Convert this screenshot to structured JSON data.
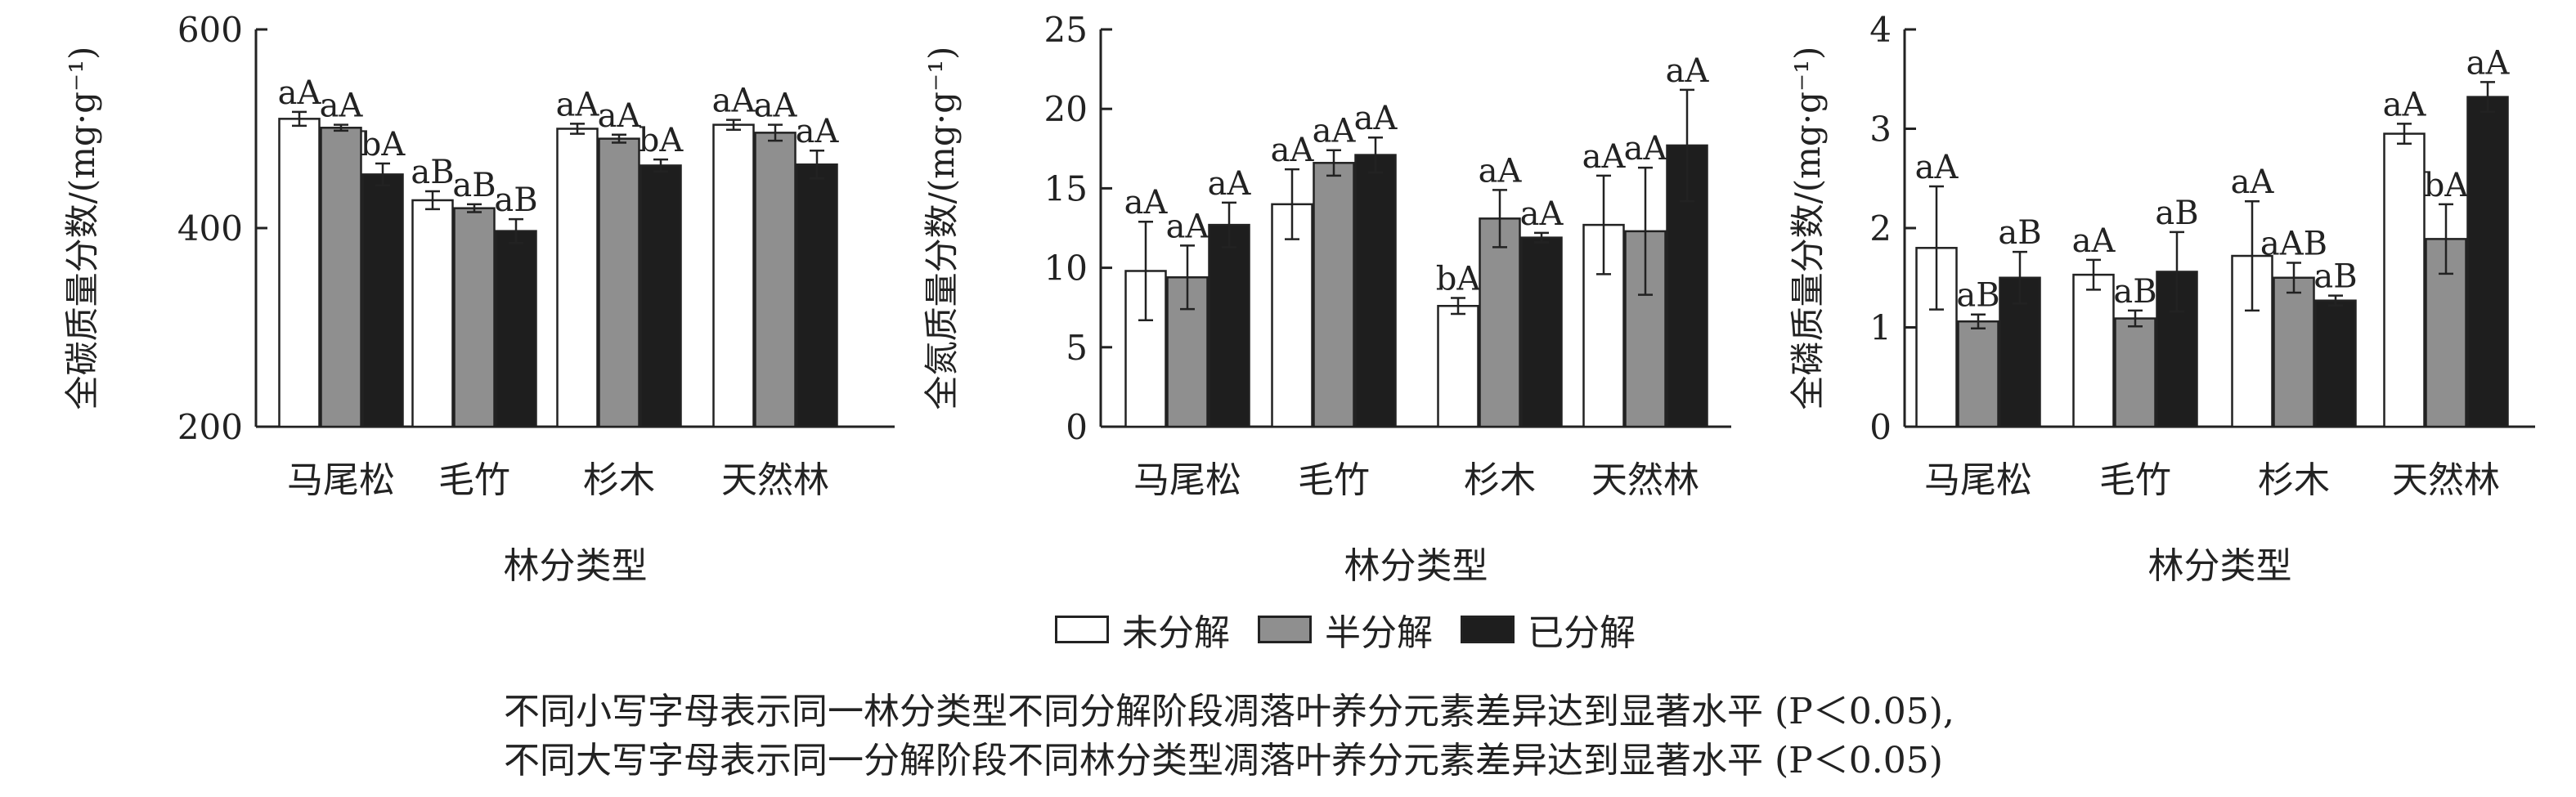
{
  "colors": {
    "未分解": "#ffffff",
    "半分解": "#8f8f8f",
    "已分解": "#1e1e1e",
    "axis": "#222222"
  },
  "legend": {
    "items": [
      {
        "name": "未分解",
        "color": "#ffffff"
      },
      {
        "name": "半分解",
        "color": "#8f8f8f"
      },
      {
        "name": "已分解",
        "color": "#1e1e1e"
      }
    ]
  },
  "footnote": {
    "line1": "不同小写字母表示同一林分类型不同分解阶段凋落叶养分元素差异达到显著水平 (P＜0.05),",
    "line2": "不同大写字母表示同一分解阶段不同林分类型凋落叶养分元素差异达到显著水平 (P＜0.05)"
  },
  "chart_data": [
    {
      "type": "bar",
      "xlabel": "林分类型",
      "ylabel": "全碳质量分数/(mg·g⁻¹)",
      "ylim": [
        200,
        600
      ],
      "yticks": [
        200,
        400,
        600
      ],
      "categories": [
        "马尾松",
        "毛竹",
        "杉木",
        "天然林"
      ],
      "series": [
        {
          "name": "未分解",
          "values": [
            510,
            428,
            500,
            504
          ],
          "errors": [
            7,
            9,
            5,
            5
          ],
          "labels": [
            "aA",
            "aB",
            "aA",
            "aA"
          ]
        },
        {
          "name": "半分解",
          "values": [
            501,
            420,
            490,
            496
          ],
          "errors": [
            3,
            4,
            4,
            8
          ],
          "labels": [
            "aA",
            "aB",
            "aA",
            "aA"
          ]
        },
        {
          "name": "已分解",
          "values": [
            454,
            397,
            463,
            464
          ],
          "errors": [
            11,
            12,
            6,
            14
          ],
          "labels": [
            "bA",
            "aB",
            "bA",
            "aA"
          ]
        }
      ]
    },
    {
      "type": "bar",
      "xlabel": "林分类型",
      "ylabel": "全氮质量分数/(mg·g⁻¹)",
      "ylim": [
        0,
        25
      ],
      "yticks": [
        0,
        5,
        10,
        15,
        20,
        25
      ],
      "categories": [
        "马尾松",
        "毛竹",
        "杉木",
        "天然林"
      ],
      "series": [
        {
          "name": "未分解",
          "values": [
            9.8,
            14.0,
            7.6,
            12.7
          ],
          "errors": [
            3.1,
            2.2,
            0.5,
            3.1
          ],
          "labels": [
            "aA",
            "aA",
            "bA",
            "aA"
          ]
        },
        {
          "name": "半分解",
          "values": [
            9.4,
            16.6,
            13.1,
            12.3
          ],
          "errors": [
            2.0,
            0.8,
            1.8,
            4.0
          ],
          "labels": [
            "aA",
            "aA",
            "aA",
            "aA"
          ]
        },
        {
          "name": "已分解",
          "values": [
            12.7,
            17.1,
            11.9,
            17.7
          ],
          "errors": [
            1.4,
            1.1,
            0.3,
            3.5
          ],
          "labels": [
            "aA",
            "aA",
            "aA",
            "aA"
          ]
        }
      ]
    },
    {
      "type": "bar",
      "xlabel": "林分类型",
      "ylabel": "全磷质量分数/(mg·g⁻¹)",
      "ylim": [
        0,
        4
      ],
      "yticks": [
        0,
        1,
        2,
        3,
        4
      ],
      "categories": [
        "马尾松",
        "毛竹",
        "杉木",
        "天然林"
      ],
      "series": [
        {
          "name": "未分解",
          "values": [
            1.8,
            1.53,
            1.72,
            2.95
          ],
          "errors": [
            0.62,
            0.15,
            0.55,
            0.1
          ],
          "labels": [
            "aA",
            "aA",
            "aA",
            "aA"
          ]
        },
        {
          "name": "半分解",
          "values": [
            1.06,
            1.09,
            1.5,
            1.89
          ],
          "errors": [
            0.07,
            0.08,
            0.15,
            0.35
          ],
          "labels": [
            "aB",
            "aB",
            "aAB",
            "bA"
          ]
        },
        {
          "name": "已分解",
          "values": [
            1.5,
            1.56,
            1.27,
            3.32
          ],
          "errors": [
            0.26,
            0.4,
            0.05,
            0.15
          ],
          "labels": [
            "aB",
            "aB",
            "aB",
            "aA"
          ]
        }
      ]
    }
  ]
}
